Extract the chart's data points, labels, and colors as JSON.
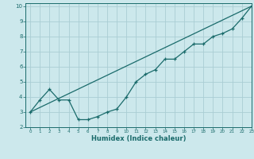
{
  "title": "",
  "xlabel": "Humidex (Indice chaleur)",
  "ylabel": "",
  "bg_color": "#cce8ec",
  "grid_color": "#aacdd4",
  "line_color": "#1a6b6b",
  "xlim": [
    -0.5,
    23
  ],
  "ylim": [
    2,
    10.2
  ],
  "xticks": [
    0,
    1,
    2,
    3,
    4,
    5,
    6,
    7,
    8,
    9,
    10,
    11,
    12,
    13,
    14,
    15,
    16,
    17,
    18,
    19,
    20,
    21,
    22,
    23
  ],
  "yticks": [
    2,
    3,
    4,
    5,
    6,
    7,
    8,
    9,
    10
  ],
  "curve_x": [
    0,
    1,
    2,
    3,
    4,
    5,
    6,
    7,
    8,
    9,
    10,
    11,
    12,
    13,
    14,
    15,
    16,
    17,
    18,
    19,
    20,
    21,
    22,
    23
  ],
  "curve_y": [
    3.0,
    3.8,
    4.5,
    3.8,
    3.8,
    2.5,
    2.5,
    2.7,
    3.0,
    3.2,
    4.0,
    5.0,
    5.5,
    5.8,
    6.5,
    6.5,
    7.0,
    7.5,
    7.5,
    8.0,
    8.2,
    8.5,
    9.2,
    10.0
  ],
  "line_x": [
    0,
    23
  ],
  "line_y": [
    3.0,
    10.0
  ]
}
